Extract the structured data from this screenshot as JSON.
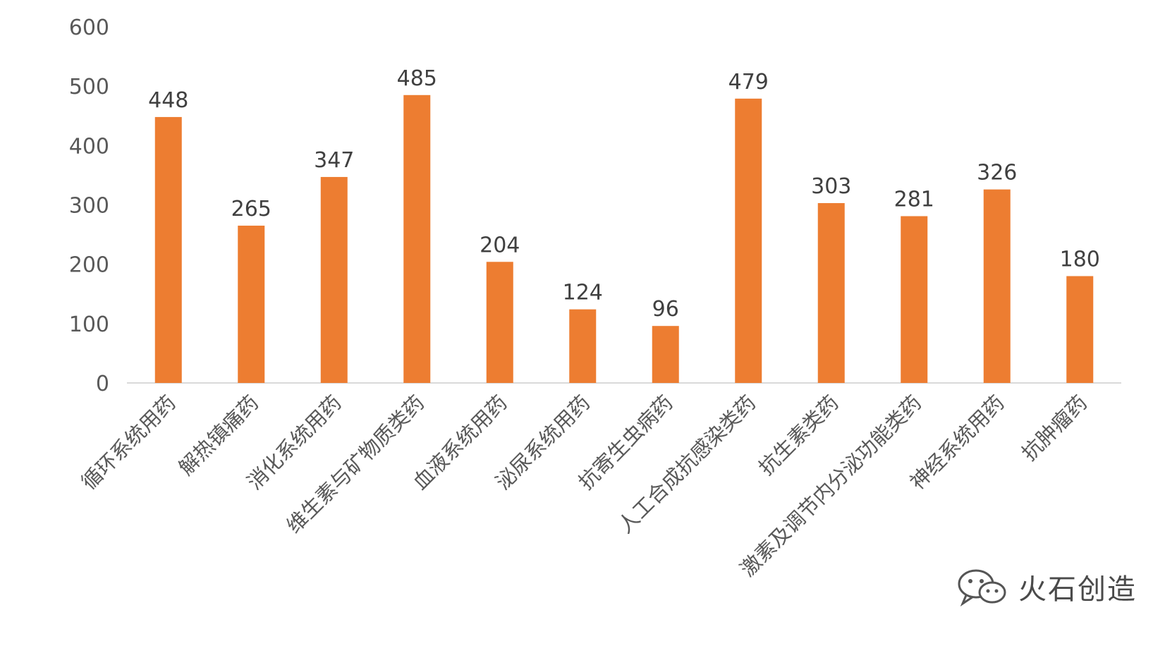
{
  "chart_data": {
    "type": "bar",
    "title": "",
    "xlabel": "",
    "ylabel": "",
    "ylim": [
      0,
      600
    ],
    "yticks": [
      0,
      100,
      200,
      300,
      400,
      500,
      600
    ],
    "grid": false,
    "bar_color": "#ED7D31",
    "categories": [
      "循环系统用药",
      "解热镇痛药",
      "消化系统用药",
      "维生素与矿物质类药",
      "血液系统用药",
      "泌尿系统用药",
      "抗寄生虫病药",
      "人工合成抗感染类药",
      "抗生素类药",
      "激素及调节内分泌功能类药",
      "神经系统用药",
      "抗肿瘤药"
    ],
    "values": [
      448,
      265,
      347,
      485,
      204,
      124,
      96,
      479,
      303,
      281,
      326,
      180
    ]
  },
  "watermark": {
    "text": "火石创造",
    "icon": "wechat-icon"
  }
}
